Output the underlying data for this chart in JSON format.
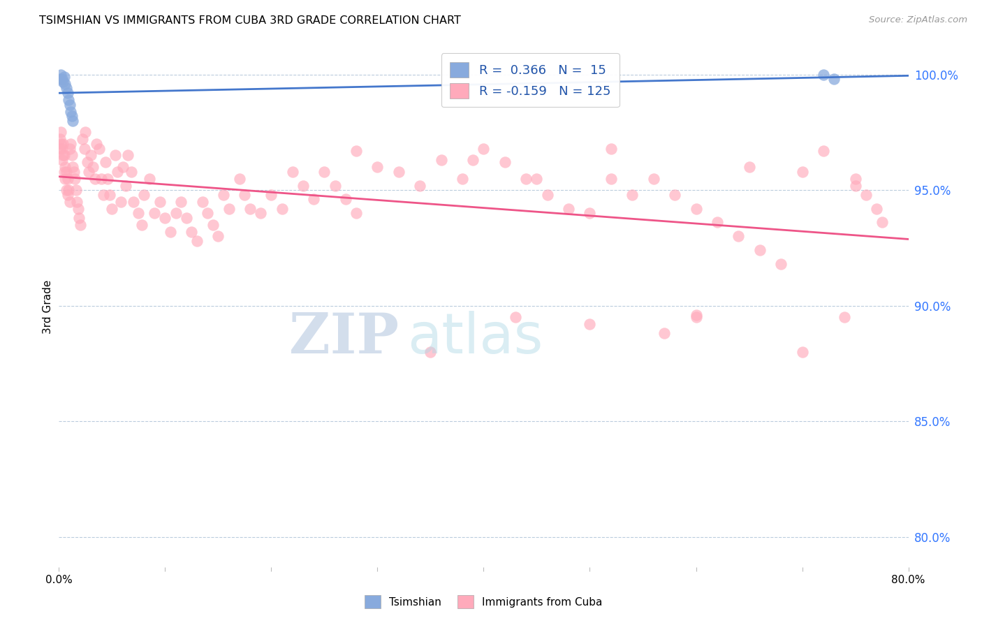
{
  "title": "TSIMSHIAN VS IMMIGRANTS FROM CUBA 3RD GRADE CORRELATION CHART",
  "source": "Source: ZipAtlas.com",
  "ylabel": "3rd Grade",
  "xlim": [
    0.0,
    0.8
  ],
  "ylim": [
    0.787,
    1.012
  ],
  "yticks": [
    0.8,
    0.85,
    0.9,
    0.95,
    1.0
  ],
  "ytick_labels": [
    "80.0%",
    "85.0%",
    "90.0%",
    "95.0%",
    "100.0%"
  ],
  "blue_dot_color": "#88AADD",
  "pink_dot_color": "#FFAABB",
  "blue_line_color": "#4477CC",
  "pink_line_color": "#EE5588",
  "legend_label_blue": "R =  0.366   N =  15",
  "legend_label_pink": "R = -0.159   N = 125",
  "watermark_zip": "ZIP",
  "watermark_atlas": "atlas",
  "blue_x": [
    0.001,
    0.002,
    0.003,
    0.004,
    0.005,
    0.006,
    0.007,
    0.008,
    0.009,
    0.01,
    0.011,
    0.012,
    0.013,
    0.72,
    0.73
  ],
  "blue_y": [
    0.998,
    1.0,
    0.998,
    0.997,
    0.999,
    0.996,
    0.994,
    0.992,
    0.989,
    0.987,
    0.984,
    0.982,
    0.98,
    1.0,
    0.998
  ],
  "pink_x": [
    0.001,
    0.001,
    0.002,
    0.002,
    0.003,
    0.003,
    0.004,
    0.004,
    0.005,
    0.005,
    0.006,
    0.006,
    0.007,
    0.007,
    0.008,
    0.008,
    0.009,
    0.01,
    0.01,
    0.011,
    0.012,
    0.013,
    0.014,
    0.015,
    0.016,
    0.017,
    0.018,
    0.019,
    0.02,
    0.022,
    0.024,
    0.025,
    0.027,
    0.028,
    0.03,
    0.032,
    0.034,
    0.035,
    0.038,
    0.04,
    0.042,
    0.044,
    0.046,
    0.048,
    0.05,
    0.053,
    0.055,
    0.058,
    0.06,
    0.063,
    0.065,
    0.068,
    0.07,
    0.075,
    0.078,
    0.08,
    0.085,
    0.09,
    0.095,
    0.1,
    0.105,
    0.11,
    0.115,
    0.12,
    0.125,
    0.13,
    0.135,
    0.14,
    0.145,
    0.15,
    0.155,
    0.16,
    0.17,
    0.175,
    0.18,
    0.19,
    0.2,
    0.21,
    0.22,
    0.23,
    0.24,
    0.25,
    0.26,
    0.27,
    0.28,
    0.3,
    0.32,
    0.34,
    0.36,
    0.38,
    0.4,
    0.42,
    0.44,
    0.46,
    0.48,
    0.5,
    0.52,
    0.54,
    0.56,
    0.58,
    0.6,
    0.62,
    0.64,
    0.66,
    0.68,
    0.7,
    0.72,
    0.74,
    0.75,
    0.76,
    0.77,
    0.775,
    0.35,
    0.28,
    0.43,
    0.5,
    0.57,
    0.6,
    0.65,
    0.7,
    0.75,
    0.39,
    0.45,
    0.52,
    0.6
  ],
  "pink_y": [
    0.972,
    0.968,
    0.975,
    0.97,
    0.968,
    0.963,
    0.97,
    0.965,
    0.965,
    0.958,
    0.96,
    0.955,
    0.958,
    0.95,
    0.955,
    0.948,
    0.95,
    0.968,
    0.945,
    0.97,
    0.965,
    0.96,
    0.958,
    0.955,
    0.95,
    0.945,
    0.942,
    0.938,
    0.935,
    0.972,
    0.968,
    0.975,
    0.962,
    0.958,
    0.965,
    0.96,
    0.955,
    0.97,
    0.968,
    0.955,
    0.948,
    0.962,
    0.955,
    0.948,
    0.942,
    0.965,
    0.958,
    0.945,
    0.96,
    0.952,
    0.965,
    0.958,
    0.945,
    0.94,
    0.935,
    0.948,
    0.955,
    0.94,
    0.945,
    0.938,
    0.932,
    0.94,
    0.945,
    0.938,
    0.932,
    0.928,
    0.945,
    0.94,
    0.935,
    0.93,
    0.948,
    0.942,
    0.955,
    0.948,
    0.942,
    0.94,
    0.948,
    0.942,
    0.958,
    0.952,
    0.946,
    0.958,
    0.952,
    0.946,
    0.94,
    0.96,
    0.958,
    0.952,
    0.963,
    0.955,
    0.968,
    0.962,
    0.955,
    0.948,
    0.942,
    0.94,
    0.955,
    0.948,
    0.955,
    0.948,
    0.942,
    0.936,
    0.93,
    0.924,
    0.918,
    0.88,
    0.967,
    0.895,
    0.955,
    0.948,
    0.942,
    0.936,
    0.88,
    0.967,
    0.895,
    0.892,
    0.888,
    0.896,
    0.96,
    0.958,
    0.952,
    0.963,
    0.955,
    0.968,
    0.895
  ]
}
